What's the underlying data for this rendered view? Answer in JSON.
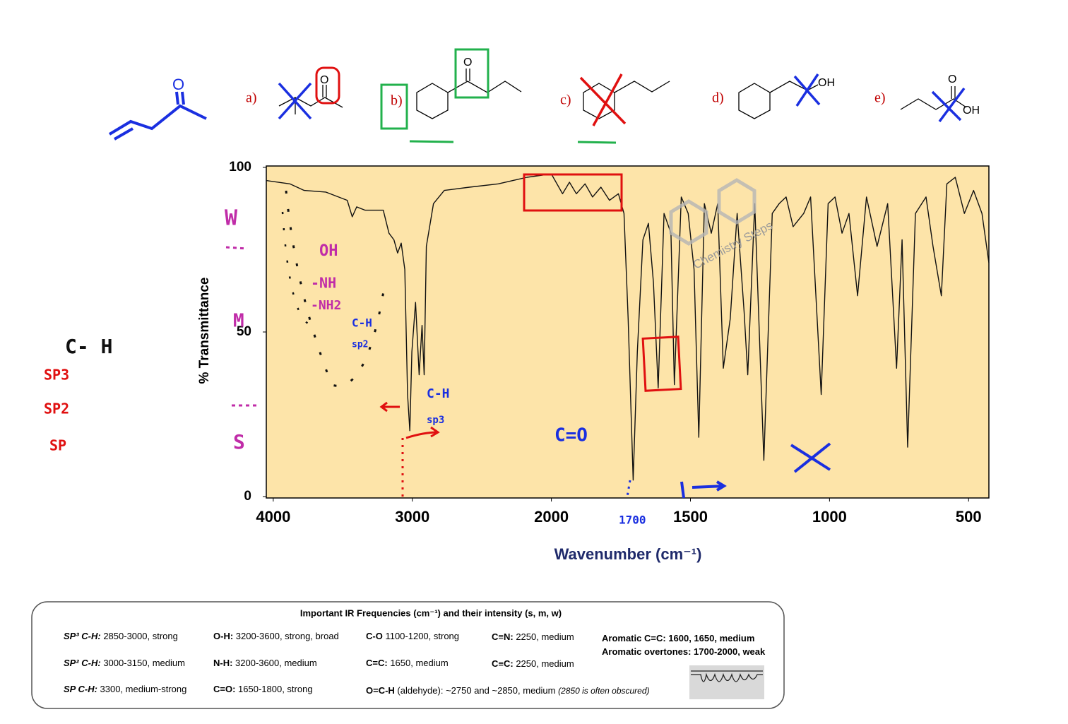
{
  "chart_data": {
    "type": "line",
    "xlabel": "Wavenumber (cm⁻¹)",
    "ylabel": "% Transmittance",
    "x": [
      4050,
      3881,
      3778,
      3623,
      3468,
      3432,
      3400,
      3339,
      3209,
      3168,
      3132,
      3106,
      3080,
      3054,
      3034,
      3018,
      3003,
      2977,
      2951,
      2930,
      2915,
      2899,
      2848,
      2770,
      2589,
      2382,
      2176,
      2000,
      1960,
      1935,
      1910,
      1879,
      1852,
      1822,
      1791,
      1759,
      1739,
      1724,
      1706,
      1691,
      1671,
      1651,
      1633,
      1616,
      1595,
      1570,
      1558,
      1533,
      1508,
      1487,
      1470,
      1450,
      1425,
      1402,
      1382,
      1357,
      1332,
      1307,
      1294,
      1269,
      1236,
      1206,
      1181,
      1156,
      1131,
      1093,
      1068,
      1030,
      1005,
      980,
      955,
      930,
      899,
      867,
      829,
      791,
      759,
      739,
      719,
      691,
      653,
      628,
      598,
      578,
      548,
      515,
      482,
      452,
      427
    ],
    "values": [
      96,
      95,
      93,
      92.5,
      90,
      85,
      88,
      87,
      87,
      80,
      78,
      74,
      77,
      69,
      31,
      20,
      44,
      59,
      37,
      52,
      37,
      76,
      89,
      93,
      94,
      95,
      97,
      98,
      92,
      95.5,
      92,
      95,
      91,
      94,
      90,
      92,
      86,
      54,
      5,
      44,
      78,
      83,
      65,
      33,
      86,
      80,
      34,
      91,
      86,
      69,
      18,
      89,
      80,
      89,
      39,
      54,
      86,
      56,
      37,
      89,
      11,
      86,
      89,
      91,
      82,
      86,
      91,
      31,
      89,
      91,
      80,
      86,
      61,
      91,
      76,
      89,
      39,
      78,
      15,
      86,
      91,
      76,
      61,
      95,
      97,
      86,
      93,
      86,
      71
    ],
    "color": "#111111",
    "xlim": [
      4050,
      427
    ],
    "x_scale_break": 2000,
    "x_scale_ratio": 2,
    "xticks": [
      4000,
      3000,
      2000,
      1500,
      1000,
      500
    ],
    "ylim": [
      0,
      100
    ],
    "yticks": [
      0,
      50,
      100
    ],
    "grid": false
  },
  "structures": {
    "enone_atom": "O",
    "options": [
      {
        "label": "a)",
        "atoms": [
          "O"
        ]
      },
      {
        "label": "b)",
        "atoms": [
          "O"
        ]
      },
      {
        "label": "c)",
        "atoms": []
      },
      {
        "label": "d)",
        "atoms": [
          "OH"
        ]
      },
      {
        "label": "e)",
        "atoms": [
          "O",
          "OH"
        ]
      }
    ]
  },
  "watermark": "Chemistry Steps",
  "annotations": [
    "W",
    "M",
    "S",
    "OH",
    "-NH",
    "-NH2",
    "C-H",
    "sp2",
    "C-H",
    "sp3",
    "C=O",
    "1700",
    "C- H",
    "SP3",
    "SP2",
    "SP"
  ],
  "reference_table": {
    "title": "Important IR Frequencies (cm⁻¹) and their intensity (s, m, w)",
    "entries": [
      {
        "bold": "SP³ C-H:",
        "text": " 2850-3000, strong"
      },
      {
        "bold": "SP² C-H:",
        "text": " 3000-3150, medium"
      },
      {
        "bold": "SP C-H:",
        "text": "  3300, medium-strong"
      },
      {
        "bold": "O-H:",
        "text": " 3200-3600, strong, broad"
      },
      {
        "bold": "N-H:",
        "text": " 3200-3600, medium"
      },
      {
        "bold": "C=O:",
        "text": " 1650-1800, strong"
      },
      {
        "bold": "C-O",
        "text": " 1100-1200, strong"
      },
      {
        "bold": "C=C:",
        "text": " 1650, medium"
      },
      {
        "bold": "O=C-H",
        "text": " (aldehyde): ~2750 and ~2850, medium ",
        "note": "(2850 is often obscured)"
      },
      {
        "bold": "C≡N:",
        "text": " 2250, medium"
      },
      {
        "bold": "C≡C:",
        "text": " 2250, medium"
      },
      {
        "bold": "Aromatic C=C:",
        "text": " 1600, 1650, medium"
      },
      {
        "bold": "Aromatic overtones:",
        "text": " 1700-2000, ",
        "tail": "weak"
      }
    ]
  }
}
